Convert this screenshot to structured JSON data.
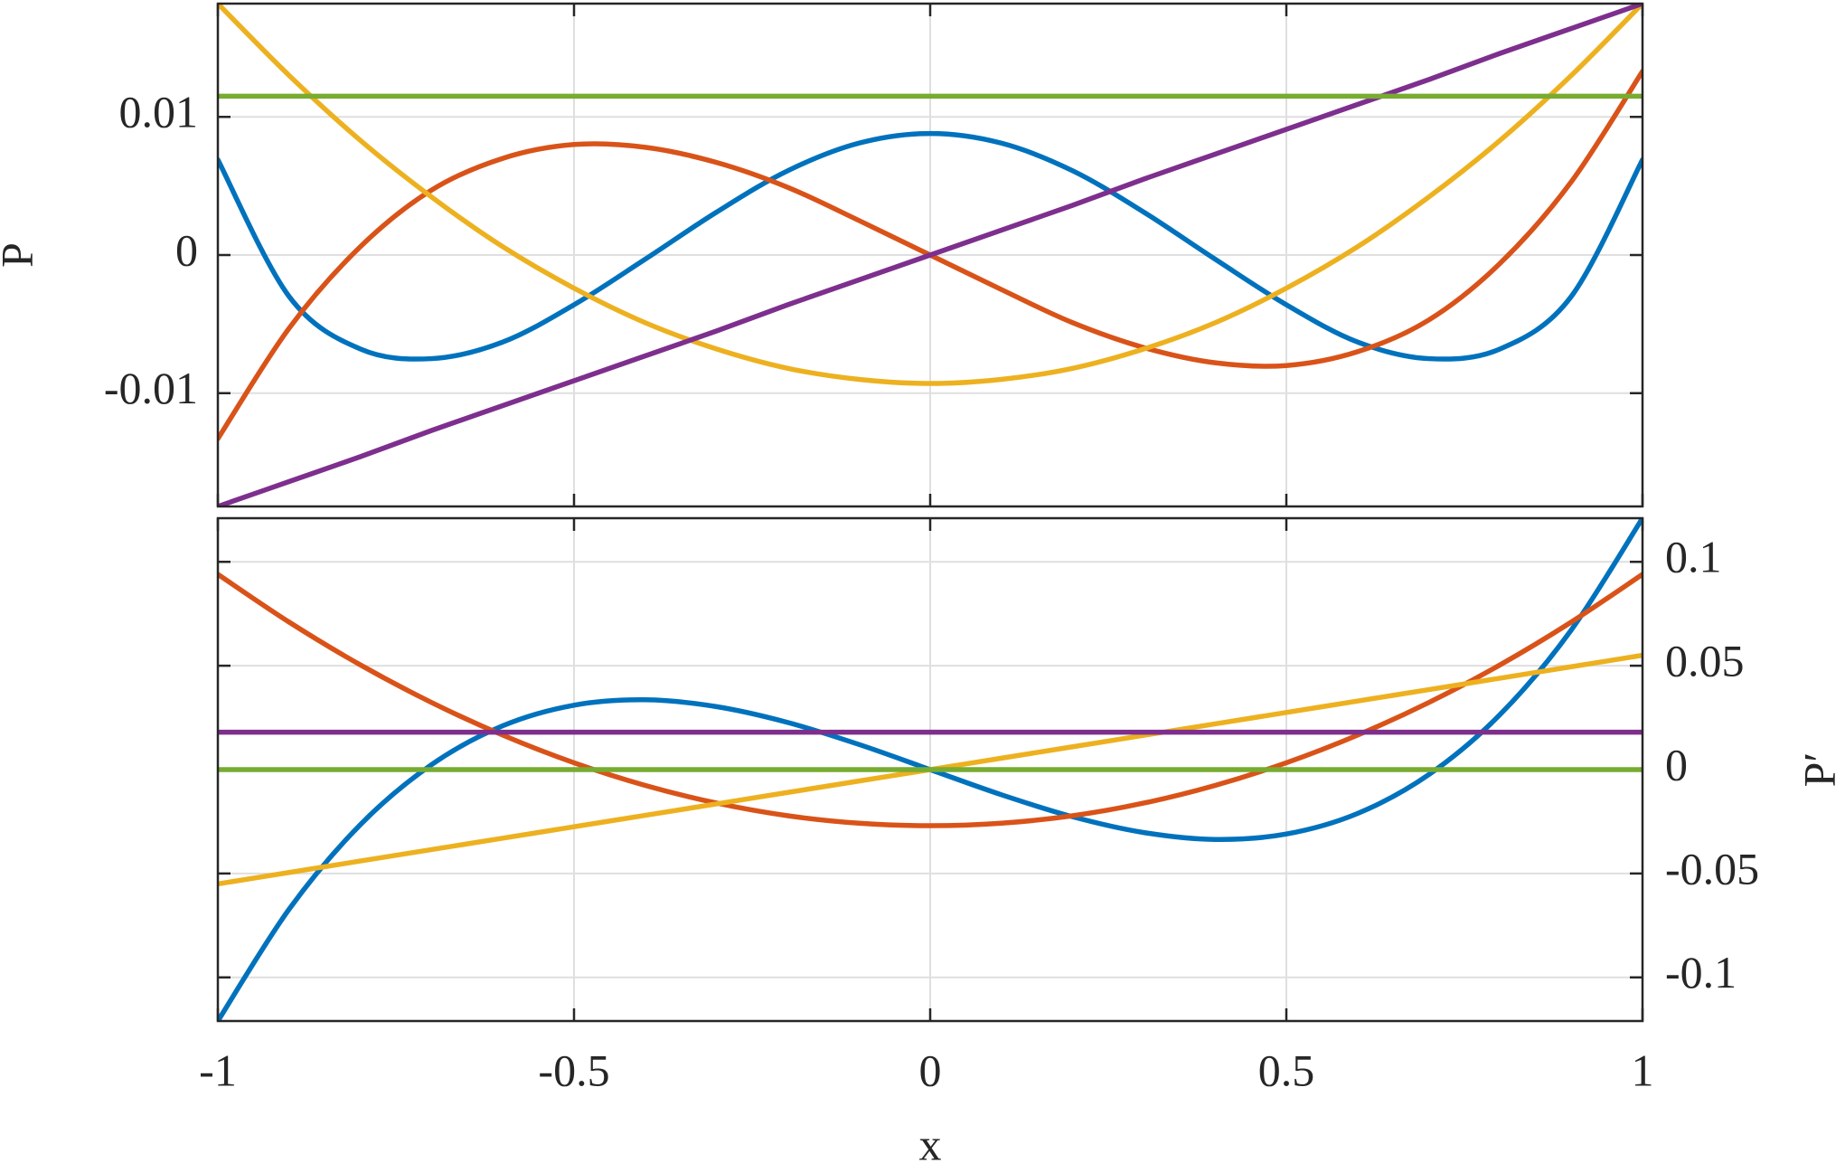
{
  "chart_data": [
    {
      "type": "line",
      "ylabel": "P",
      "y_axis_position": "left",
      "x": [
        -1,
        -0.9,
        -0.8,
        -0.7,
        -0.6,
        -0.5,
        -0.4,
        -0.3,
        -0.2,
        -0.1,
        0,
        0.1,
        0.2,
        0.3,
        0.4,
        0.5,
        0.6,
        0.7,
        0.8,
        0.9,
        1
      ],
      "xlim": [
        -1,
        1
      ],
      "xticks": [
        -1,
        -0.5,
        0,
        0.5,
        1
      ],
      "ylim": [
        -0.0182,
        0.0182
      ],
      "yticks": [
        -0.01,
        0,
        0.01
      ],
      "grid": true,
      "series": [
        {
          "color": "#0072BD",
          "values": [
            0.0069,
            -0.003,
            -0.0068,
            -0.0075,
            -0.0063,
            -0.0036,
            -0.0003,
            0.0031,
            0.0061,
            0.0081,
            0.0088,
            0.0081,
            0.0061,
            0.0031,
            -0.0003,
            -0.0036,
            -0.0063,
            -0.0075,
            -0.0068,
            -0.003,
            0.0069
          ]
        },
        {
          "color": "#D95319",
          "values": [
            -0.0133,
            -0.0053,
            0.0006,
            0.0047,
            0.007,
            0.008,
            0.0078,
            0.0067,
            0.0049,
            0.0025,
            0,
            -0.0025,
            -0.0049,
            -0.0067,
            -0.0078,
            -0.008,
            -0.007,
            -0.0047,
            -0.0006,
            0.0053,
            0.0133
          ]
        },
        {
          "color": "#EDB120",
          "values": [
            0.0182,
            0.013,
            0.0083,
            0.0042,
            0.0006,
            -0.0024,
            -0.0049,
            -0.0068,
            -0.0082,
            -0.009,
            -0.0093,
            -0.009,
            -0.0082,
            -0.0068,
            -0.0049,
            -0.0024,
            0.0006,
            0.0042,
            0.0083,
            0.013,
            0.0182
          ]
        },
        {
          "color": "#7E2F8E",
          "values": [
            -0.0182,
            -0.0164,
            -0.0146,
            -0.0127,
            -0.0109,
            -0.0091,
            -0.0073,
            -0.0055,
            -0.0036,
            -0.0018,
            0,
            0.0018,
            0.0036,
            0.0055,
            0.0073,
            0.0091,
            0.0109,
            0.0127,
            0.0146,
            0.0164,
            0.0182
          ]
        },
        {
          "color": "#77AC30",
          "values": [
            0.0115,
            0.0115,
            0.0115,
            0.0115,
            0.0115,
            0.0115,
            0.0115,
            0.0115,
            0.0115,
            0.0115,
            0.0115,
            0.0115,
            0.0115,
            0.0115,
            0.0115,
            0.0115,
            0.0115,
            0.0115,
            0.0115,
            0.0115,
            0.0115
          ]
        }
      ]
    },
    {
      "type": "line",
      "ylabel": "P′",
      "xlabel": "x",
      "y_axis_position": "right",
      "x": [
        -1,
        -0.9,
        -0.8,
        -0.7,
        -0.6,
        -0.5,
        -0.4,
        -0.3,
        -0.2,
        -0.1,
        0,
        0.1,
        0.2,
        0.3,
        0.4,
        0.5,
        0.6,
        0.7,
        0.8,
        0.9,
        1
      ],
      "xlim": [
        -1,
        1
      ],
      "xticks": [
        -1,
        -0.5,
        0,
        0.5,
        1
      ],
      "ylim": [
        -0.121,
        0.121
      ],
      "yticks": [
        -0.1,
        -0.05,
        0,
        0.05,
        0.1
      ],
      "grid": true,
      "series": [
        {
          "color": "#0072BD",
          "values": [
            -0.121,
            -0.0672,
            -0.0265,
            0.0024,
            0.0211,
            0.031,
            0.0336,
            0.0303,
            0.0227,
            0.0121,
            0,
            -0.0121,
            -0.0227,
            -0.0303,
            -0.0336,
            -0.031,
            -0.0211,
            -0.0024,
            0.0265,
            0.0672,
            0.121
          ]
        },
        {
          "color": "#D95319",
          "values": [
            0.094,
            0.071,
            0.0504,
            0.0323,
            0.0166,
            0.0033,
            -0.0076,
            -0.0161,
            -0.0222,
            -0.0258,
            -0.027,
            -0.0258,
            -0.0222,
            -0.0161,
            -0.0076,
            0.0033,
            0.0166,
            0.0323,
            0.0504,
            0.071,
            0.094
          ]
        },
        {
          "color": "#EDB120",
          "values": [
            -0.055,
            -0.0495,
            -0.044,
            -0.0385,
            -0.033,
            -0.0275,
            -0.022,
            -0.0165,
            -0.011,
            -0.0055,
            0,
            0.0055,
            0.011,
            0.0165,
            0.022,
            0.0275,
            0.033,
            0.0385,
            0.044,
            0.0495,
            0.055
          ]
        },
        {
          "color": "#7E2F8E",
          "values": [
            0.018,
            0.018,
            0.018,
            0.018,
            0.018,
            0.018,
            0.018,
            0.018,
            0.018,
            0.018,
            0.018,
            0.018,
            0.018,
            0.018,
            0.018,
            0.018,
            0.018,
            0.018,
            0.018,
            0.018,
            0.018
          ]
        },
        {
          "color": "#77AC30",
          "values": [
            0,
            0,
            0,
            0,
            0,
            0,
            0,
            0,
            0,
            0,
            0,
            0,
            0,
            0,
            0,
            0,
            0,
            0,
            0,
            0,
            0
          ]
        }
      ]
    }
  ]
}
